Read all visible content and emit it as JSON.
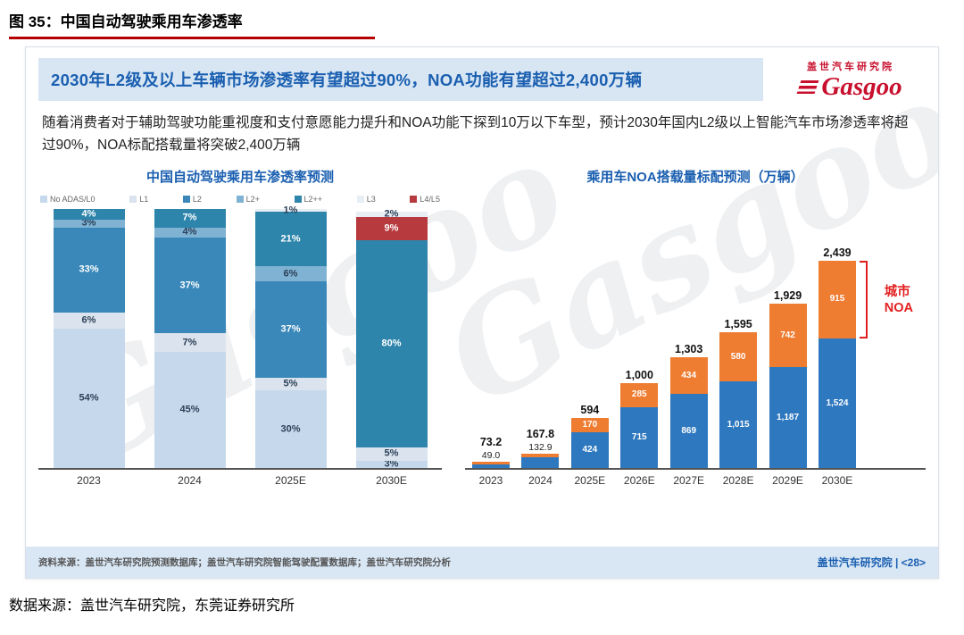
{
  "page": {
    "figure_title": "图 35：中国自动驾驶乘用车渗透率",
    "bottom_source": "数据来源：盖世汽车研究院，东莞证券研究所"
  },
  "panel": {
    "headline": "2030年L2级及以上车辆市场渗透率有望超过90%，NOA功能有望超过2,400万辆",
    "paragraph": "随着消费者对于辅助驾驶功能重视度和支付意愿能力提升和NOA功能下探到10万以下车型，预计2030年国内L2级以上智能汽车市场渗透率将超过90%，NOA标配搭载量将突破2,400万辆",
    "logo": {
      "company": "盖世汽车研究院",
      "brand": "Gasgoo"
    },
    "watermark": "Gasgoo",
    "footer": {
      "left": "资料来源：盖世汽车研究院预测数据库；盖世汽车研究院智能驾驶配置数据库；盖世汽车研究院分析",
      "right": "盖世汽车研究院 | <28>"
    }
  },
  "chart_data": [
    {
      "type": "bar",
      "subtype": "stacked-100pct",
      "title": "中国自动驾驶乘用车渗透率预测",
      "unit": "%",
      "ylim": [
        0,
        100
      ],
      "grid": false,
      "legend_position": "top",
      "legend": [
        {
          "label": "No ADAS/L0",
          "color": "#c6d9ec"
        },
        {
          "label": "L1",
          "color": "#dbe4ee"
        },
        {
          "label": "L2",
          "color": "#3a88ba"
        },
        {
          "label": "L2+",
          "color": "#7fb2d3"
        },
        {
          "label": "L2++",
          "color": "#2e85ac"
        },
        {
          "label": "L3",
          "color": "#e8eef4"
        },
        {
          "label": "L4/L5",
          "color": "#b73a3e"
        }
      ],
      "categories": [
        "2023",
        "2024",
        "2025E",
        "2030E"
      ],
      "bars": [
        {
          "category": "2023",
          "segments": [
            {
              "level": "No ADAS/L0",
              "value": 54,
              "label": "54%"
            },
            {
              "level": "L1",
              "value": 6,
              "label": "6%"
            },
            {
              "level": "L2",
              "value": 33,
              "label": "33%"
            },
            {
              "level": "L2+",
              "value": 3,
              "label": "3%"
            },
            {
              "level": "L2++",
              "value": 4,
              "label": "4%"
            }
          ]
        },
        {
          "category": "2024",
          "segments": [
            {
              "level": "No ADAS/L0",
              "value": 45,
              "label": "45%"
            },
            {
              "level": "L1",
              "value": 7,
              "label": "7%"
            },
            {
              "level": "L2",
              "value": 37,
              "label": "37%"
            },
            {
              "level": "L2+",
              "value": 4,
              "label": "4%"
            },
            {
              "level": "L2++",
              "value": 7,
              "label": "7%"
            }
          ]
        },
        {
          "category": "2025E",
          "segments": [
            {
              "level": "No ADAS/L0",
              "value": 30,
              "label": "30%"
            },
            {
              "level": "L1",
              "value": 5,
              "label": "5%"
            },
            {
              "level": "L2",
              "value": 37,
              "label": "37%"
            },
            {
              "level": "L2+",
              "value": 6,
              "label": "6%"
            },
            {
              "level": "L2++",
              "value": 21,
              "label": "21%"
            },
            {
              "level": "L3",
              "value": 1,
              "label": "1%"
            }
          ]
        },
        {
          "category": "2030E",
          "segments": [
            {
              "level": "No ADAS/L0",
              "value": 3,
              "label": "3%"
            },
            {
              "level": "L1",
              "value": 5,
              "label": "5%"
            },
            {
              "level": "L2++",
              "value": 80,
              "label": "80%"
            },
            {
              "level": "L4/L5",
              "value": 9,
              "label": "9%"
            },
            {
              "level": "L3",
              "value": 2,
              "label": "2%"
            }
          ]
        }
      ]
    },
    {
      "type": "bar",
      "subtype": "stacked",
      "title": "乘用车NOA搭载量标配预测（万辆）",
      "unit": "万辆",
      "ylim": [
        0,
        2600
      ],
      "grid": false,
      "colors": {
        "base": "#2e78bf",
        "city": "#ee7c31"
      },
      "categories": [
        "2023",
        "2024",
        "2025E",
        "2026E",
        "2027E",
        "2028E",
        "2029E",
        "2030E"
      ],
      "bars": [
        {
          "category": "2023",
          "total": "73.2",
          "segments": [
            {
              "series": "base",
              "value": 49.0,
              "label": "49.0",
              "label_pos": "above"
            },
            {
              "series": "city",
              "value": 24.2,
              "label": null
            }
          ]
        },
        {
          "category": "2024",
          "total": "167.8",
          "segments": [
            {
              "series": "base",
              "value": 132.9,
              "label": "132.9",
              "label_pos": "above"
            },
            {
              "series": "city",
              "value": 34.9,
              "label": null
            }
          ]
        },
        {
          "category": "2025E",
          "total": "594",
          "segments": [
            {
              "series": "base",
              "value": 424,
              "label": "424",
              "label_pos": "inside"
            },
            {
              "series": "city",
              "value": 170,
              "label": "170",
              "label_pos": "inside"
            }
          ]
        },
        {
          "category": "2026E",
          "total": "1,000",
          "segments": [
            {
              "series": "base",
              "value": 715,
              "label": "715",
              "label_pos": "inside"
            },
            {
              "series": "city",
              "value": 285,
              "label": "285",
              "label_pos": "inside"
            }
          ]
        },
        {
          "category": "2027E",
          "total": "1,303",
          "segments": [
            {
              "series": "base",
              "value": 869,
              "label": "869",
              "label_pos": "inside"
            },
            {
              "series": "city",
              "value": 434,
              "label": "434",
              "label_pos": "inside"
            }
          ]
        },
        {
          "category": "2028E",
          "total": "1,595",
          "segments": [
            {
              "series": "base",
              "value": 1015,
              "label": "1,015",
              "label_pos": "inside"
            },
            {
              "series": "city",
              "value": 580,
              "label": "580",
              "label_pos": "inside"
            }
          ]
        },
        {
          "category": "2029E",
          "total": "1,929",
          "segments": [
            {
              "series": "base",
              "value": 1187,
              "label": "1,187",
              "label_pos": "inside"
            },
            {
              "series": "city",
              "value": 742,
              "label": "742",
              "label_pos": "inside"
            }
          ]
        },
        {
          "category": "2030E",
          "total": "2,439",
          "bracket": true,
          "segments": [
            {
              "series": "base",
              "value": 1524,
              "label": "1,524",
              "label_pos": "inside"
            },
            {
              "series": "city",
              "value": 915,
              "label": "915",
              "label_pos": "inside"
            }
          ]
        }
      ],
      "annotation": {
        "text": "城市\nNOA",
        "color": "#e21f1f"
      }
    }
  ]
}
